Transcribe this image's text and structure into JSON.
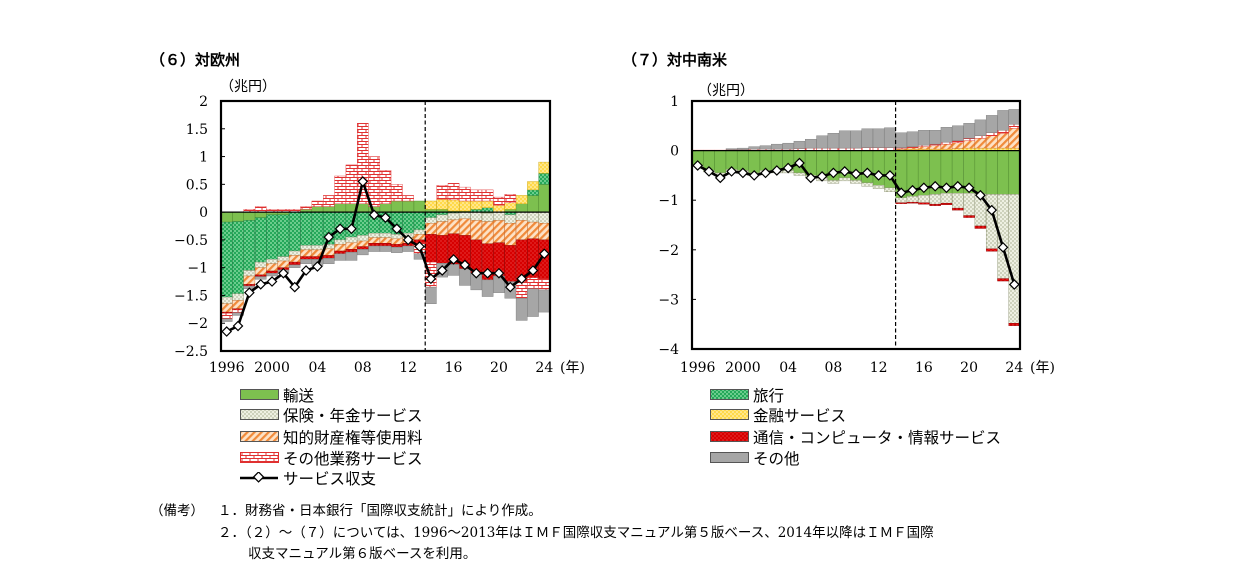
{
  "panels": [
    {
      "title": "（６）対欧州",
      "unit": "（兆円）",
      "year_suffix": "(年)"
    },
    {
      "title": "（７）対中南米",
      "unit": "（兆円）",
      "year_suffix": "(年)"
    }
  ],
  "legend": {
    "transport": "輸送",
    "travel": "旅行",
    "insurance": "保険・年金サービス",
    "financial": "金融サービス",
    "ip": "知的財産権等使用料",
    "telecom": "通信・コンピュータ・情報サービス",
    "other_business": "その他業務サービス",
    "other": "その他",
    "balance": "サービス収支"
  },
  "notes": {
    "label": "（備考）",
    "n1": "１．財務省・日本銀行「国際収支統計」により作成。",
    "n2": "２．（２）～（７）については、1996～2013年はＩＭＦ国際収支マニュアル第５版ベース、2014年以降はＩＭＦ国際",
    "n3": "収支マニュアル第６版ベースを利用。"
  },
  "colors": {
    "transport": "#7dc04f",
    "travel": "#1faa5a",
    "insurance": "#e6ead8",
    "financial": "#ffe28a",
    "ip": "#f5b27a",
    "telecom": "#d90000",
    "other_business": "#ffffff",
    "other_business_line": "#e03030",
    "other": "#a6a6a6",
    "balance": "#000000"
  },
  "chart_data": [
    {
      "type": "bar",
      "title": "（６）対欧州",
      "ylabel": "（兆円）",
      "xlabel": "(年)",
      "ylim": [
        -2.5,
        2
      ],
      "yticks": [
        "2",
        "1.5",
        "1",
        "0.5",
        "0",
        "−0.5",
        "−1",
        "−1.5",
        "−2",
        "−2.5"
      ],
      "xtick_labels": [
        "1996",
        "2000",
        "04",
        "08",
        "12",
        "16",
        "20",
        "24"
      ],
      "categories": [
        1996,
        1997,
        1998,
        1999,
        2000,
        2001,
        2002,
        2003,
        2004,
        2005,
        2006,
        2007,
        2008,
        2009,
        2010,
        2011,
        2012,
        2013,
        2014,
        2015,
        2016,
        2017,
        2018,
        2019,
        2020,
        2021,
        2022,
        2023,
        2024
      ],
      "break_after": 2013,
      "series": [
        {
          "name": "輸送",
          "values": [
            -0.18,
            -0.17,
            -0.15,
            -0.1,
            -0.05,
            -0.05,
            0,
            0.05,
            0.1,
            0.1,
            0.15,
            0.15,
            0.15,
            0.1,
            0.15,
            0.2,
            0.2,
            0.2,
            0.05,
            0.05,
            0.02,
            0.02,
            0,
            -0.02,
            0,
            0.05,
            0.15,
            0.3,
            0.5
          ]
        },
        {
          "name": "旅行",
          "values": [
            -1.35,
            -1.3,
            -0.9,
            -0.8,
            -0.8,
            -0.75,
            -0.7,
            -0.6,
            -0.6,
            -0.58,
            -0.5,
            -0.45,
            -0.42,
            -0.38,
            -0.38,
            -0.4,
            -0.38,
            -0.32,
            -0.1,
            -0.05,
            -0.02,
            0,
            0.05,
            0.08,
            0,
            -0.05,
            0,
            0.1,
            0.2
          ]
        },
        {
          "name": "保険・年金サービス",
          "values": [
            -0.12,
            -0.12,
            -0.1,
            -0.1,
            -0.08,
            -0.08,
            -0.08,
            -0.08,
            -0.08,
            -0.08,
            -0.08,
            -0.1,
            -0.1,
            -0.08,
            -0.08,
            -0.08,
            -0.08,
            -0.08,
            -0.1,
            -0.12,
            -0.12,
            -0.12,
            -0.15,
            -0.15,
            -0.15,
            -0.15,
            -0.15,
            -0.18,
            -0.2
          ]
        },
        {
          "name": "金融サービス",
          "values": [
            0,
            0,
            0,
            0,
            0,
            0,
            0,
            0,
            0,
            0,
            0,
            0,
            0,
            0,
            0,
            0,
            0,
            0,
            0.15,
            0.18,
            0.2,
            0.18,
            0.15,
            0.12,
            0.12,
            0.12,
            0.15,
            0.15,
            0.2
          ]
        },
        {
          "name": "知的財産権等使用料",
          "values": [
            -0.15,
            -0.15,
            -0.15,
            -0.13,
            -0.13,
            -0.12,
            -0.12,
            -0.12,
            -0.12,
            -0.12,
            -0.12,
            -0.12,
            -0.1,
            -0.1,
            -0.1,
            -0.1,
            -0.1,
            -0.1,
            -0.2,
            -0.25,
            -0.25,
            -0.3,
            -0.35,
            -0.4,
            -0.4,
            -0.4,
            -0.35,
            -0.3,
            -0.3
          ]
        },
        {
          "name": "通信・コンピュータ・情報サービス",
          "values": [
            -0.02,
            -0.02,
            -0.03,
            -0.03,
            -0.04,
            -0.04,
            -0.05,
            -0.05,
            -0.05,
            -0.05,
            -0.05,
            -0.05,
            -0.05,
            -0.05,
            -0.05,
            -0.05,
            -0.05,
            -0.05,
            -0.5,
            -0.5,
            -0.55,
            -0.6,
            -0.6,
            -0.65,
            -0.6,
            -0.65,
            -0.75,
            -0.7,
            -0.7
          ]
        },
        {
          "name": "その他業務サービス",
          "values": [
            -0.1,
            -0.05,
            0.05,
            0.1,
            0.05,
            0.05,
            0.05,
            0.05,
            0.1,
            0.2,
            0.5,
            0.7,
            1.45,
            0.9,
            0.6,
            0.3,
            0.1,
            -0.2,
            -0.45,
            0.25,
            0.3,
            0.25,
            0.2,
            0.2,
            0.15,
            0.15,
            -0.3,
            -0.2,
            -0.2
          ]
        },
        {
          "name": "その他",
          "values": [
            -0.05,
            -0.05,
            -0.05,
            -0.05,
            -0.05,
            -0.05,
            -0.05,
            -0.08,
            -0.12,
            -0.1,
            -0.12,
            -0.15,
            -0.1,
            -0.1,
            -0.1,
            -0.1,
            -0.1,
            -0.1,
            -0.3,
            -0.25,
            -0.2,
            -0.3,
            -0.3,
            -0.3,
            -0.3,
            -0.3,
            -0.4,
            -0.5,
            -0.4
          ]
        },
        {
          "name": "サービス収支",
          "type": "line",
          "values": [
            -2.15,
            -2.05,
            -1.45,
            -1.3,
            -1.25,
            -1.1,
            -1.35,
            -1.05,
            -0.98,
            -0.45,
            -0.3,
            -0.3,
            0.55,
            -0.05,
            -0.1,
            -0.3,
            -0.5,
            -0.62,
            -1.2,
            -1.05,
            -0.85,
            -0.95,
            -1.1,
            -1.1,
            -1.1,
            -1.35,
            -1.2,
            -1.05,
            -0.75
          ]
        }
      ]
    },
    {
      "type": "bar",
      "title": "（７）対中南米",
      "ylabel": "（兆円）",
      "xlabel": "(年)",
      "ylim": [
        -4,
        1
      ],
      "yticks": [
        "1",
        "0",
        "−1",
        "−2",
        "−3",
        "−4"
      ],
      "xtick_labels": [
        "1996",
        "2000",
        "04",
        "08",
        "12",
        "16",
        "20",
        "24"
      ],
      "categories": [
        1996,
        1997,
        1998,
        1999,
        2000,
        2001,
        2002,
        2003,
        2004,
        2005,
        2006,
        2007,
        2008,
        2009,
        2010,
        2011,
        2012,
        2013,
        2014,
        2015,
        2016,
        2017,
        2018,
        2019,
        2020,
        2021,
        2022,
        2023,
        2024
      ],
      "break_after": 2013,
      "series": [
        {
          "name": "輸送",
          "values": [
            -0.3,
            -0.4,
            -0.45,
            -0.38,
            -0.4,
            -0.45,
            -0.4,
            -0.4,
            -0.4,
            -0.45,
            -0.5,
            -0.55,
            -0.6,
            -0.55,
            -0.6,
            -0.65,
            -0.7,
            -0.75,
            -0.95,
            -0.92,
            -0.9,
            -0.88,
            -0.86,
            -0.86,
            -0.86,
            -0.87,
            -0.88,
            -0.88,
            -0.88
          ]
        },
        {
          "name": "旅行",
          "values": [
            0,
            0,
            0,
            0,
            0,
            0,
            0,
            0,
            0,
            0,
            0,
            0,
            0,
            0,
            0,
            0,
            0,
            0,
            0,
            0,
            0,
            0,
            0,
            0,
            0,
            0,
            0,
            0,
            0
          ]
        },
        {
          "name": "保険・年金サービス",
          "values": [
            -0.02,
            -0.03,
            -0.03,
            -0.03,
            -0.05,
            -0.05,
            -0.05,
            -0.05,
            -0.05,
            -0.05,
            -0.05,
            -0.06,
            -0.06,
            -0.06,
            -0.06,
            -0.07,
            -0.07,
            -0.08,
            -0.1,
            -0.12,
            -0.15,
            -0.2,
            -0.2,
            -0.3,
            -0.45,
            -0.65,
            -1.1,
            -1.7,
            -2.6
          ]
        },
        {
          "name": "金融サービス",
          "values": [
            0,
            0,
            0,
            0,
            0,
            0,
            0,
            0,
            0,
            0,
            0,
            0,
            0,
            0,
            0,
            0,
            0,
            0,
            0.02,
            0.03,
            0.03,
            0.03,
            0.03,
            0.04,
            0.05,
            0.05,
            0.05,
            0.05,
            0.05
          ]
        },
        {
          "name": "知的財産権等使用料",
          "values": [
            0,
            0,
            0,
            0,
            0,
            0,
            0,
            0,
            0,
            0,
            0,
            0,
            0,
            0,
            0,
            0,
            0,
            0,
            0.02,
            0.03,
            0.05,
            0.07,
            0.1,
            0.12,
            0.15,
            0.2,
            0.25,
            0.3,
            0.4
          ]
        },
        {
          "name": "通信・コンピュータ・情報サービス",
          "values": [
            0,
            0,
            0,
            0,
            0,
            0,
            0,
            0,
            0,
            0,
            0,
            0,
            0,
            0,
            0,
            0,
            0,
            0,
            -0.02,
            -0.02,
            -0.03,
            -0.03,
            -0.03,
            -0.04,
            -0.04,
            -0.05,
            -0.05,
            -0.05,
            -0.05
          ]
        },
        {
          "name": "その他業務サービス",
          "values": [
            0.01,
            0.01,
            0.01,
            0.02,
            0.02,
            0.03,
            0.03,
            0.03,
            0.03,
            0.04,
            0.05,
            0.05,
            0.05,
            0.05,
            0.05,
            0.06,
            0.06,
            0.06,
            0.02,
            0.02,
            0.03,
            0.03,
            0.04,
            0.04,
            0.05,
            0.05,
            0.06,
            0.06,
            0.08
          ]
        },
        {
          "name": "その他",
          "values": [
            0,
            0,
            0,
            0.02,
            0.03,
            0.05,
            0.07,
            0.1,
            0.12,
            0.15,
            0.18,
            0.25,
            0.3,
            0.35,
            0.35,
            0.38,
            0.38,
            0.4,
            0.3,
            0.3,
            0.3,
            0.28,
            0.3,
            0.3,
            0.3,
            0.32,
            0.35,
            0.4,
            0.3
          ]
        },
        {
          "name": "サービス収支",
          "type": "line",
          "values": [
            -0.3,
            -0.42,
            -0.55,
            -0.42,
            -0.45,
            -0.5,
            -0.45,
            -0.4,
            -0.35,
            -0.25,
            -0.55,
            -0.52,
            -0.45,
            -0.42,
            -0.47,
            -0.45,
            -0.5,
            -0.5,
            -0.85,
            -0.8,
            -0.75,
            -0.72,
            -0.75,
            -0.72,
            -0.75,
            -0.9,
            -1.2,
            -1.95,
            -2.7
          ]
        }
      ]
    }
  ]
}
